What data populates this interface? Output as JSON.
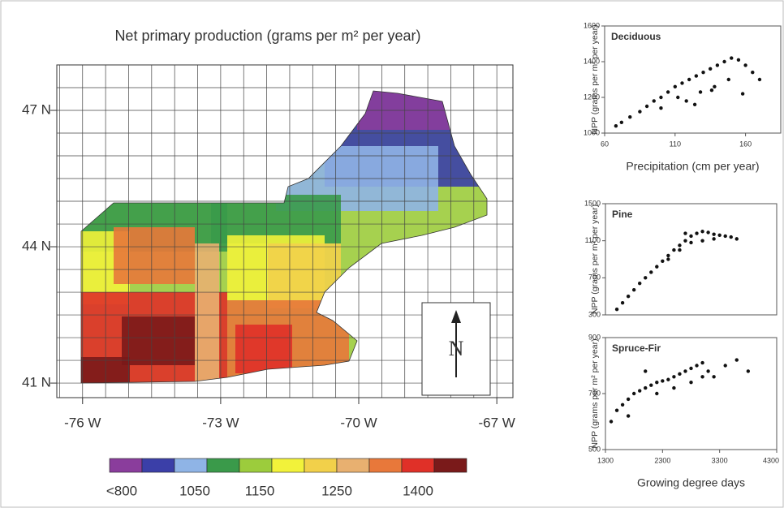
{
  "chart_data": [
    {
      "type": "map",
      "title": "Net primary production (grams per m² per year)",
      "xlim": [
        -76.56,
        -66.65
      ],
      "ylim": [
        40.68,
        48.0
      ],
      "xticks": [
        {
          "value": -76,
          "label": "-76 W"
        },
        {
          "value": -73,
          "label": "-73 W"
        },
        {
          "value": -70,
          "label": "-70 W"
        },
        {
          "value": -67,
          "label": "-67 W"
        }
      ],
      "yticks": [
        {
          "value": 41,
          "label": "41 N"
        },
        {
          "value": 44,
          "label": "44 N"
        },
        {
          "value": 47,
          "label": "47 N"
        }
      ],
      "north_label": "N",
      "legend": {
        "colors": [
          "#8a3d9c",
          "#3b3fa8",
          "#8fb4e6",
          "#3a9a4a",
          "#9ccc3c",
          "#f2f23a",
          "#f2d04a",
          "#e8b070",
          "#e8783a",
          "#e03028",
          "#7a1a1a"
        ],
        "labels": [
          "<800",
          "1050",
          "1150",
          "1250",
          "1400"
        ]
      }
    },
    {
      "type": "scatter",
      "title": "Deciduous",
      "xlabel": "Precipitation (cm per year)",
      "ylabel": "NPP (grams per m² per year)",
      "color": "#111",
      "xlim": [
        60,
        185
      ],
      "ylim": [
        1000,
        1600
      ],
      "xticks": [
        60,
        110,
        160
      ],
      "yticks": [
        1000,
        1200,
        1400,
        1600
      ],
      "x": [
        68,
        72,
        78,
        85,
        90,
        95,
        100,
        105,
        110,
        115,
        120,
        125,
        130,
        135,
        140,
        145,
        150,
        155,
        160,
        165,
        170,
        118,
        128,
        138,
        148,
        158,
        100,
        112,
        124,
        136
      ],
      "y": [
        1040,
        1060,
        1090,
        1120,
        1150,
        1180,
        1200,
        1230,
        1260,
        1280,
        1300,
        1320,
        1340,
        1360,
        1380,
        1400,
        1420,
        1410,
        1380,
        1340,
        1300,
        1180,
        1230,
        1260,
        1300,
        1220,
        1140,
        1200,
        1160,
        1240
      ]
    },
    {
      "type": "scatter",
      "title": "Pine",
      "ylabel": "NPP (grams per m² per year)",
      "color": "#111",
      "xlim": [
        1300,
        4300
      ],
      "ylim": [
        300,
        1500
      ],
      "yticks": [
        300,
        700,
        1100,
        1500
      ],
      "x": [
        1500,
        1600,
        1700,
        1800,
        1900,
        2000,
        2100,
        2200,
        2300,
        2400,
        2500,
        2600,
        2700,
        2800,
        2900,
        3000,
        3100,
        3200,
        3300,
        3400,
        3500,
        3600,
        2600,
        2800,
        3000,
        3200,
        2400,
        2700
      ],
      "y": [
        360,
        430,
        500,
        570,
        640,
        700,
        760,
        820,
        880,
        940,
        1000,
        1050,
        1100,
        1150,
        1180,
        1200,
        1190,
        1170,
        1160,
        1150,
        1140,
        1120,
        1000,
        1080,
        1100,
        1120,
        900,
        1180
      ]
    },
    {
      "type": "scatter",
      "title": "Spruce-Fir",
      "xlabel": "Growing degree days",
      "ylabel": "NPP (grams per m² per year)",
      "color": "#111",
      "xlim": [
        1300,
        4300
      ],
      "ylim": [
        500,
        900
      ],
      "xticks": [
        1300,
        2300,
        3300,
        4300
      ],
      "yticks": [
        500,
        700,
        900
      ],
      "x": [
        1400,
        1500,
        1600,
        1700,
        1800,
        1900,
        2000,
        2100,
        2200,
        2300,
        2400,
        2500,
        2600,
        2700,
        2800,
        2900,
        3000,
        3100,
        3200,
        3400,
        3600,
        3800,
        2200,
        2500,
        2800,
        3000,
        1700,
        2000
      ],
      "y": [
        600,
        640,
        660,
        680,
        700,
        710,
        720,
        730,
        740,
        745,
        750,
        760,
        770,
        780,
        790,
        800,
        810,
        780,
        760,
        800,
        820,
        780,
        700,
        720,
        740,
        760,
        620,
        780
      ]
    }
  ]
}
